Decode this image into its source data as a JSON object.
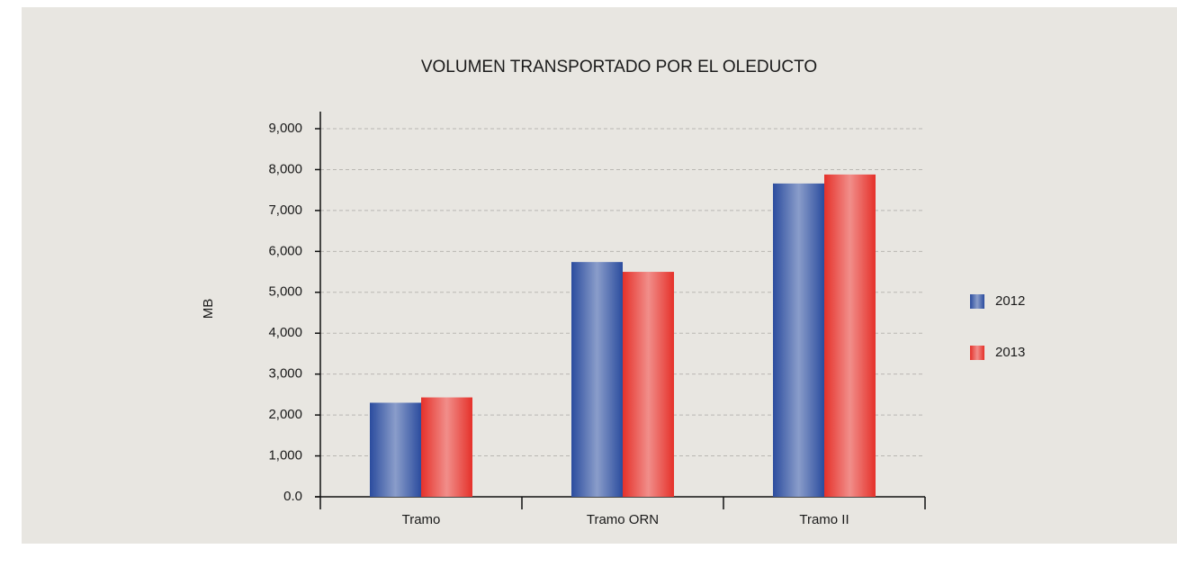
{
  "chart_data": {
    "type": "bar",
    "title": "VOLUMEN TRANSPORTADO POR EL OLEDUCTO",
    "y_label": "MB",
    "categories": [
      "Tramo",
      "Tramo ORN",
      "Tramo II"
    ],
    "series": [
      {
        "name": "2012",
        "color": "#2b4c9e",
        "values": [
          2300,
          5740,
          7660
        ]
      },
      {
        "name": "2013",
        "color": "#e5312a",
        "values": [
          2430,
          5500,
          7880
        ]
      }
    ],
    "ylim": [
      0,
      9000
    ],
    "yticks": [
      {
        "value": 0,
        "label": "0.0"
      },
      {
        "value": 1000,
        "label": "1,000"
      },
      {
        "value": 2000,
        "label": "2,000"
      },
      {
        "value": 3000,
        "label": "3,000"
      },
      {
        "value": 4000,
        "label": "4,000"
      },
      {
        "value": 5000,
        "label": "5,000"
      },
      {
        "value": 6000,
        "label": "6,000"
      },
      {
        "value": 7000,
        "label": "7,000"
      },
      {
        "value": 8000,
        "label": "8,000"
      },
      {
        "value": 9000,
        "label": "9,000"
      }
    ],
    "grid": true,
    "legend": "right"
  }
}
